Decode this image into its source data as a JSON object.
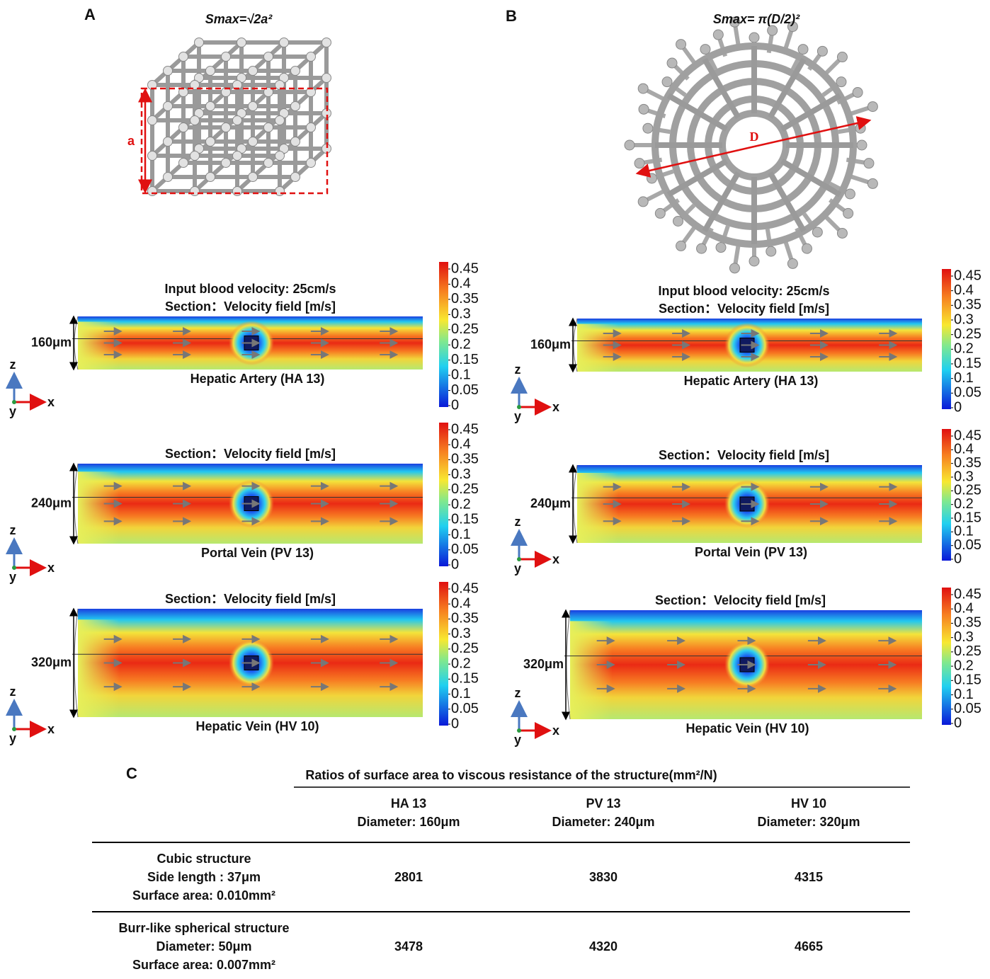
{
  "panel_a": {
    "label": "A",
    "formula": "Smax=√2a²",
    "dimension": "a",
    "simulations": [
      {
        "input": "Input blood velocity: 25cm/s",
        "section": "Section：Velocity field [m/s]",
        "diameter": "160μm",
        "vessel": "Hepatic Artery (HA  13)"
      },
      {
        "section": "Section：Velocity field [m/s]",
        "diameter": "240μm",
        "vessel": "Portal Vein (PV 13)"
      },
      {
        "section": "Section：Velocity field [m/s]",
        "diameter": "320μm",
        "vessel": "Hepatic Vein (HV 10)"
      }
    ]
  },
  "panel_b": {
    "label": "B",
    "formula": "Smax= π(D/2)²",
    "dimension": "D",
    "simulations": [
      {
        "input": "Input blood velocity: 25cm/s",
        "section": "Section：Velocity field [m/s]",
        "diameter": "160μm",
        "vessel": "Hepatic Artery (HA  13)"
      },
      {
        "section": "Section：Velocity field [m/s]",
        "diameter": "240μm",
        "vessel": "Portal Vein (PV 13)"
      },
      {
        "section": "Section：Velocity field [m/s]",
        "diameter": "320μm",
        "vessel": "Hepatic Vein (HV 10)"
      }
    ]
  },
  "colorbar_ticks": [
    0.45,
    0.4,
    0.35,
    0.3,
    0.25,
    0.2,
    0.15,
    0.1,
    0.05,
    0
  ],
  "axis_labels": {
    "z": "z",
    "x": "x",
    "y": "y"
  },
  "table": {
    "label": "C",
    "title": "Ratios of surface area to viscous resistance of the structure(mm²/N)",
    "columns": [
      [
        "HA  13",
        "Diameter: 160μm"
      ],
      [
        "PV 13",
        "Diameter: 240μm"
      ],
      [
        "HV 10",
        "Diameter: 320μm"
      ]
    ],
    "rows": [
      {
        "header": [
          "Cubic structure",
          "Side length : 37μm",
          "Surface area: 0.010mm²"
        ],
        "values": [
          2801,
          3830,
          4315
        ]
      },
      {
        "header": [
          "Burr-like spherical structure",
          "Diameter: 50μm",
          "Surface area: 0.007mm²"
        ],
        "values": [
          3478,
          4320,
          4665
        ]
      }
    ]
  }
}
